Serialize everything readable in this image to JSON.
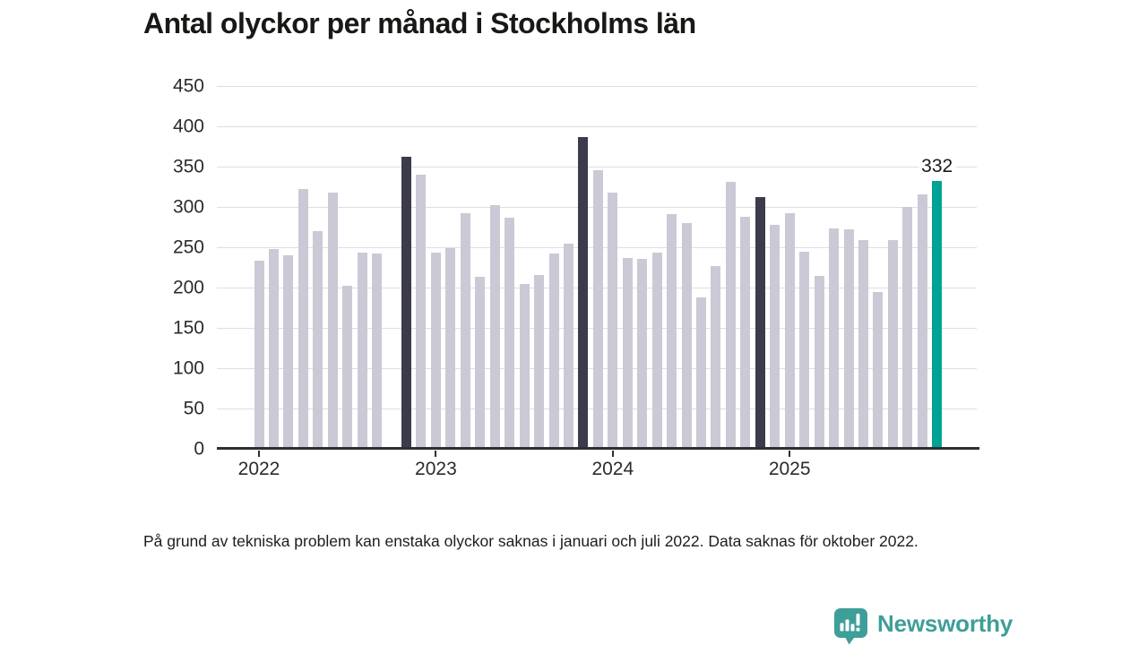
{
  "title": "Antal olyckor per månad i Stockholms län",
  "footnote": "På grund av tekniska problem kan enstaka olyckor saknas i januari och juli 2022. Data saknas för oktober 2022.",
  "branding": {
    "name": "Newsworthy",
    "icon": "newsworthy-speech-bubble-chart-icon",
    "color": "#3e9e98"
  },
  "chart_data": {
    "type": "bar",
    "title": "Antal olyckor per månad i Stockholms län",
    "xlabel": "",
    "ylabel": "",
    "ylim": [
      0,
      450
    ],
    "y_ticks": [
      0,
      50,
      100,
      150,
      200,
      250,
      300,
      350,
      400,
      450
    ],
    "grid": "horizontal",
    "legend": "none",
    "x_tick_years": [
      {
        "label": "2022",
        "month_index": 0
      },
      {
        "label": "2023",
        "month_index": 12
      },
      {
        "label": "2024",
        "month_index": 24
      },
      {
        "label": "2025",
        "month_index": 36
      }
    ],
    "annotation": {
      "text": "332",
      "month": "2025-11"
    },
    "colors": {
      "bar_default": "#cbc9d5",
      "bar_highlight_dark": "#3b3b4b",
      "bar_highlight_accent": "#00a296",
      "gridline": "#dedde1",
      "axis": "#2e2e36",
      "label_text": "#2b2b2b"
    },
    "missing_months": [
      "2022-10"
    ],
    "series": [
      {
        "name": "Antal olyckor",
        "points": [
          {
            "month": "2022-01",
            "value": 233,
            "highlight": "none"
          },
          {
            "month": "2022-02",
            "value": 248,
            "highlight": "none"
          },
          {
            "month": "2022-03",
            "value": 240,
            "highlight": "none"
          },
          {
            "month": "2022-04",
            "value": 322,
            "highlight": "none"
          },
          {
            "month": "2022-05",
            "value": 270,
            "highlight": "none"
          },
          {
            "month": "2022-06",
            "value": 318,
            "highlight": "none"
          },
          {
            "month": "2022-07",
            "value": 202,
            "highlight": "none"
          },
          {
            "month": "2022-08",
            "value": 243,
            "highlight": "none"
          },
          {
            "month": "2022-09",
            "value": 242,
            "highlight": "none"
          },
          {
            "month": "2022-10",
            "value": null,
            "highlight": "missing"
          },
          {
            "month": "2022-11",
            "value": 362,
            "highlight": "dark"
          },
          {
            "month": "2022-12",
            "value": 340,
            "highlight": "none"
          },
          {
            "month": "2023-01",
            "value": 243,
            "highlight": "none"
          },
          {
            "month": "2023-02",
            "value": 249,
            "highlight": "none"
          },
          {
            "month": "2023-03",
            "value": 292,
            "highlight": "none"
          },
          {
            "month": "2023-04",
            "value": 213,
            "highlight": "none"
          },
          {
            "month": "2023-05",
            "value": 302,
            "highlight": "none"
          },
          {
            "month": "2023-06",
            "value": 287,
            "highlight": "none"
          },
          {
            "month": "2023-07",
            "value": 205,
            "highlight": "none"
          },
          {
            "month": "2023-08",
            "value": 216,
            "highlight": "none"
          },
          {
            "month": "2023-09",
            "value": 242,
            "highlight": "none"
          },
          {
            "month": "2023-10",
            "value": 255,
            "highlight": "none"
          },
          {
            "month": "2023-11",
            "value": 387,
            "highlight": "dark"
          },
          {
            "month": "2023-12",
            "value": 346,
            "highlight": "none"
          },
          {
            "month": "2024-01",
            "value": 318,
            "highlight": "none"
          },
          {
            "month": "2024-02",
            "value": 237,
            "highlight": "none"
          },
          {
            "month": "2024-03",
            "value": 236,
            "highlight": "none"
          },
          {
            "month": "2024-04",
            "value": 243,
            "highlight": "none"
          },
          {
            "month": "2024-05",
            "value": 291,
            "highlight": "none"
          },
          {
            "month": "2024-06",
            "value": 280,
            "highlight": "none"
          },
          {
            "month": "2024-07",
            "value": 188,
            "highlight": "none"
          },
          {
            "month": "2024-08",
            "value": 227,
            "highlight": "none"
          },
          {
            "month": "2024-09",
            "value": 331,
            "highlight": "none"
          },
          {
            "month": "2024-10",
            "value": 288,
            "highlight": "none"
          },
          {
            "month": "2024-11",
            "value": 312,
            "highlight": "dark"
          },
          {
            "month": "2024-12",
            "value": 278,
            "highlight": "none"
          },
          {
            "month": "2025-01",
            "value": 292,
            "highlight": "none"
          },
          {
            "month": "2025-02",
            "value": 245,
            "highlight": "none"
          },
          {
            "month": "2025-03",
            "value": 215,
            "highlight": "none"
          },
          {
            "month": "2025-04",
            "value": 273,
            "highlight": "none"
          },
          {
            "month": "2025-05",
            "value": 272,
            "highlight": "none"
          },
          {
            "month": "2025-06",
            "value": 259,
            "highlight": "none"
          },
          {
            "month": "2025-07",
            "value": 194,
            "highlight": "none"
          },
          {
            "month": "2025-08",
            "value": 259,
            "highlight": "none"
          },
          {
            "month": "2025-09",
            "value": 300,
            "highlight": "none"
          },
          {
            "month": "2025-10",
            "value": 316,
            "highlight": "none"
          },
          {
            "month": "2025-11",
            "value": 332,
            "highlight": "accent"
          }
        ]
      }
    ]
  }
}
